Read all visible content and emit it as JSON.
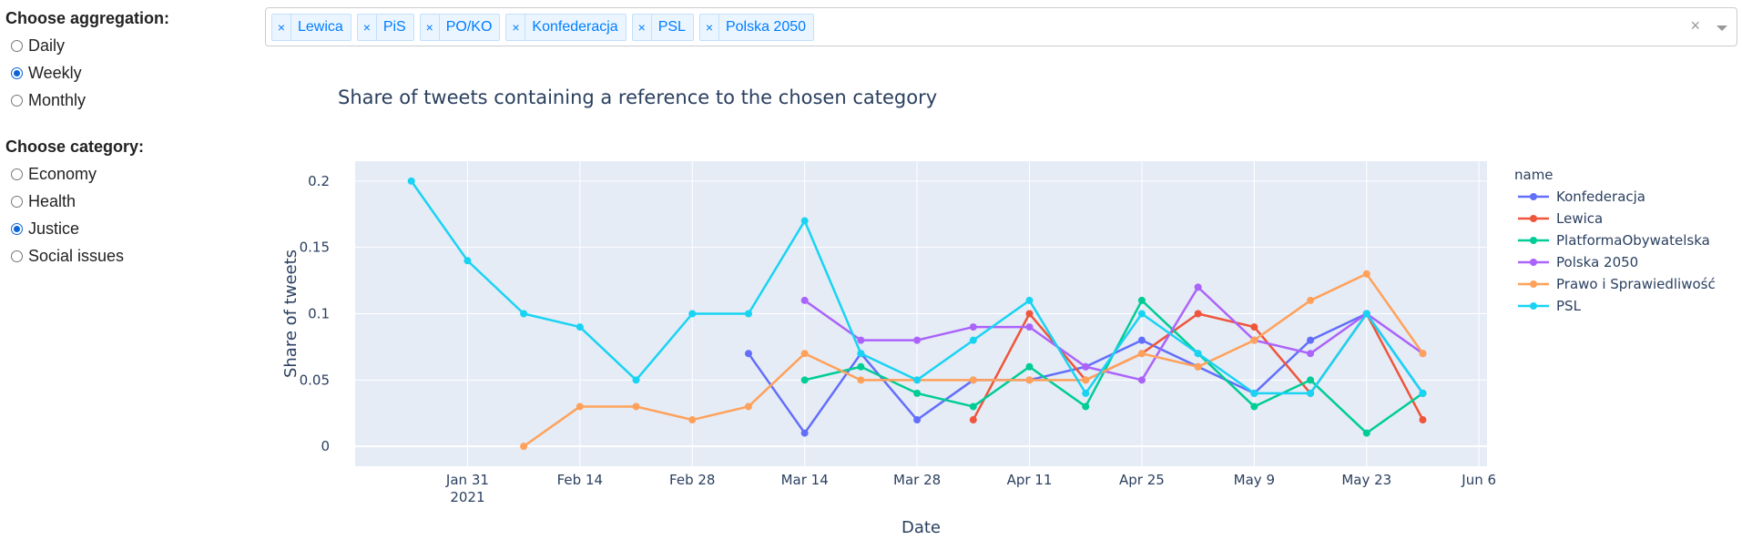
{
  "aggregation": {
    "title": "Choose aggregation:",
    "options": [
      "Daily",
      "Weekly",
      "Monthly"
    ],
    "selected": "Weekly"
  },
  "category": {
    "title": "Choose category:",
    "options": [
      "Economy",
      "Health",
      "Justice",
      "Social issues"
    ],
    "selected": "Justice"
  },
  "dropdown": {
    "tags": [
      "Lewica",
      "PiS",
      "PO/KO",
      "Konfederacja",
      "PSL",
      "Polska 2050"
    ],
    "remove_glyph": "×",
    "clear_glyph": "×"
  },
  "chart_data": {
    "type": "line",
    "title": "Share of tweets containing a reference to the chosen category",
    "xlabel": "Date",
    "ylabel": "Share of tweets",
    "x_ticks": [
      "2021-01-31",
      "2021-02-14",
      "2021-02-28",
      "2021-03-14",
      "2021-03-28",
      "2021-04-11",
      "2021-04-25",
      "2021-05-09",
      "2021-05-23",
      "2021-06-06"
    ],
    "x_tick_labels": [
      "Jan 31",
      "Feb 14",
      "Feb 28",
      "Mar 14",
      "Mar 28",
      "Apr 11",
      "Apr 25",
      "May 9",
      "May 23",
      "Jun 6"
    ],
    "x_tick_sublabel": "2021",
    "xlim": [
      "2021-01-17",
      "2021-06-07"
    ],
    "ylim": [
      -0.015,
      0.215
    ],
    "y_ticks": [
      0,
      0.05,
      0.1,
      0.15,
      0.2
    ],
    "y_tick_labels": [
      "0",
      "0.05",
      "0.1",
      "0.15",
      "0.2"
    ],
    "grid": true,
    "legend_title": "name",
    "legend_position": "right",
    "series": [
      {
        "name": "Konfederacja",
        "color": "#636efa",
        "x": [
          "2021-03-07",
          "2021-03-14",
          "2021-03-21",
          "2021-03-28",
          "2021-04-04",
          "2021-04-11",
          "2021-04-18",
          "2021-04-25",
          "2021-05-02",
          "2021-05-09",
          "2021-05-16",
          "2021-05-23",
          "2021-05-30"
        ],
        "y": [
          0.07,
          0.01,
          0.07,
          0.02,
          0.05,
          0.05,
          0.06,
          0.08,
          0.06,
          0.04,
          0.08,
          0.1,
          0.04
        ]
      },
      {
        "name": "Lewica",
        "color": "#ef553b",
        "x": [
          "2021-04-04",
          "2021-04-11",
          "2021-04-18",
          "2021-04-25",
          "2021-05-02",
          "2021-05-09",
          "2021-05-16",
          "2021-05-23",
          "2021-05-30"
        ],
        "y": [
          0.02,
          0.1,
          0.05,
          0.07,
          0.1,
          0.09,
          0.04,
          0.1,
          0.02
        ]
      },
      {
        "name": "PlatformaObywatelska",
        "color": "#00cc96",
        "x": [
          "2021-03-14",
          "2021-03-21",
          "2021-03-28",
          "2021-04-04",
          "2021-04-11",
          "2021-04-18",
          "2021-04-25",
          "2021-05-02",
          "2021-05-09",
          "2021-05-16",
          "2021-05-23",
          "2021-05-30"
        ],
        "y": [
          0.05,
          0.06,
          0.04,
          0.03,
          0.06,
          0.03,
          0.11,
          0.07,
          0.03,
          0.05,
          0.01,
          0.04
        ]
      },
      {
        "name": "Polska 2050",
        "color": "#ab63fa",
        "x": [
          "2021-03-14",
          "2021-03-21",
          "2021-03-28",
          "2021-04-04",
          "2021-04-11",
          "2021-04-18",
          "2021-04-25",
          "2021-05-02",
          "2021-05-09",
          "2021-05-16",
          "2021-05-23",
          "2021-05-30"
        ],
        "y": [
          0.11,
          0.08,
          0.08,
          0.09,
          0.09,
          0.06,
          0.05,
          0.12,
          0.08,
          0.07,
          0.1,
          0.07
        ]
      },
      {
        "name": "Prawo i Sprawiedliwość",
        "color": "#ffa15a",
        "x": [
          "2021-02-07",
          "2021-02-14",
          "2021-02-21",
          "2021-02-28",
          "2021-03-07",
          "2021-03-14",
          "2021-03-21",
          "2021-03-28",
          "2021-04-04",
          "2021-04-11",
          "2021-04-18",
          "2021-04-25",
          "2021-05-02",
          "2021-05-09",
          "2021-05-16",
          "2021-05-23",
          "2021-05-30"
        ],
        "y": [
          0,
          0.03,
          0.03,
          0.02,
          0.03,
          0.07,
          0.05,
          0.05,
          0.05,
          0.05,
          0.05,
          0.07,
          0.06,
          0.08,
          0.11,
          0.13,
          0.07
        ]
      },
      {
        "name": "PSL",
        "color": "#19d3f3",
        "x": [
          "2021-01-24",
          "2021-01-31",
          "2021-02-07",
          "2021-02-14",
          "2021-02-21",
          "2021-02-28",
          "2021-03-07",
          "2021-03-14",
          "2021-03-21",
          "2021-03-28",
          "2021-04-04",
          "2021-04-11",
          "2021-04-18",
          "2021-04-25",
          "2021-05-02",
          "2021-05-09",
          "2021-05-16",
          "2021-05-23",
          "2021-05-30"
        ],
        "y": [
          0.2,
          0.14,
          0.1,
          0.09,
          0.05,
          0.1,
          0.1,
          0.17,
          0.07,
          0.05,
          0.08,
          0.11,
          0.04,
          0.1,
          0.07,
          0.04,
          0.04,
          0.1,
          0.04
        ]
      }
    ]
  }
}
